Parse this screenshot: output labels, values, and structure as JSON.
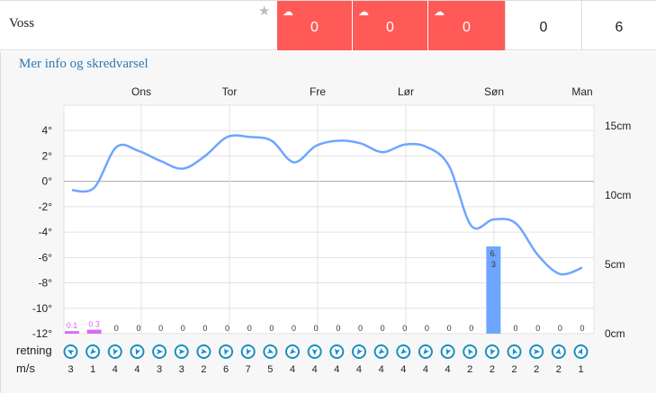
{
  "row": {
    "name": "Voss",
    "cells": [
      "0",
      "0",
      "0",
      "0",
      "6"
    ],
    "red_color": "#ff5a57",
    "icons": [
      "snow-cloud-icon",
      "snow-cloud-icon",
      "snow-cloud-icon"
    ]
  },
  "link": "Mer info og skredvarsel",
  "chart_data": {
    "type": "line+bar",
    "days": [
      "Ons",
      "Tor",
      "Fre",
      "Lør",
      "Søn",
      "Man"
    ],
    "temp_axis": {
      "ticks": [
        "4°",
        "2°",
        "0°",
        "-2°",
        "-4°",
        "-6°",
        "-8°",
        "-10°",
        "-12°"
      ],
      "range": [
        -12,
        6
      ]
    },
    "snow_axis": {
      "ticks": [
        "15cm",
        "10cm",
        "5cm",
        "0cm"
      ],
      "range": [
        0,
        16.5
      ]
    },
    "temperature": [
      -0.7,
      -0.5,
      2.7,
      2.4,
      1.6,
      1.0,
      2.0,
      3.5,
      3.5,
      3.2,
      1.5,
      2.8,
      3.2,
      3.0,
      2.3,
      2.9,
      2.7,
      1.2,
      -3.5,
      -3.0,
      -3.3,
      -5.8,
      -7.3,
      -6.8
    ],
    "precip_labels": [
      "0.1",
      "0.3",
      "0",
      "0",
      "0",
      "0",
      "0",
      "0",
      "0",
      "0",
      "0",
      "0",
      "0",
      "0",
      "0",
      "0",
      "0",
      "0",
      "0",
      "6.3",
      "0",
      "0",
      "0",
      "0"
    ],
    "precip": [
      0.1,
      0.3,
      0,
      0,
      0,
      0,
      0,
      0,
      0,
      0,
      0,
      0,
      0,
      0,
      0,
      0,
      0,
      0,
      0,
      6.3,
      0,
      0,
      0,
      0
    ],
    "line_color": "#6ea6ff",
    "bar_color": "#6ea6ff",
    "small_bar_color": "#d86bf0"
  },
  "wind": {
    "dir_label": "retning",
    "speed_label": "m/s",
    "speeds": [
      "3",
      "1",
      "4",
      "4",
      "3",
      "3",
      "2",
      "6",
      "7",
      "5",
      "4",
      "4",
      "4",
      "4",
      "4",
      "4",
      "4",
      "4",
      "2",
      "2",
      "2",
      "2",
      "2",
      "1"
    ],
    "angles": [
      300,
      225,
      200,
      200,
      90,
      90,
      100,
      200,
      200,
      110,
      230,
      180,
      190,
      210,
      230,
      230,
      220,
      200,
      330,
      200,
      340,
      90,
      10,
      20
    ]
  }
}
